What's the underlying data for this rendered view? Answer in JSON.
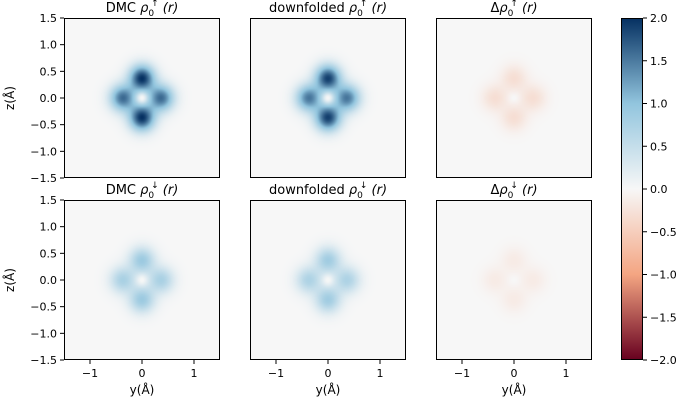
{
  "chart_data": {
    "type": "heatmap",
    "colormap": "RdBu",
    "colors": {
      "neg_max": "#67001f",
      "neg_mid": "#f4a582",
      "zero": "#f7f7f7",
      "pos_mid": "#92c5de",
      "pos_max": "#053061"
    },
    "xlabel": "y(Å)",
    "ylabel": "z(Å)",
    "xlim": [
      -1.5,
      1.5
    ],
    "ylim": [
      -1.5,
      1.5
    ],
    "xticks": [
      "−1",
      "0",
      "1"
    ],
    "xtick_values": [
      -1,
      0,
      1
    ],
    "yticks": [
      "1.5",
      "1.0",
      "0.5",
      "0.0",
      "−0.5",
      "−1.0",
      "−1.5"
    ],
    "ytick_values": [
      1.5,
      1.0,
      0.5,
      0.0,
      -0.5,
      -1.0,
      -1.5
    ],
    "colorbar": {
      "vmin": -2.0,
      "vmax": 2.0,
      "ticks": [
        "2.0",
        "1.5",
        "1.0",
        "0.5",
        "0.0",
        "−0.5",
        "−1.0",
        "−1.5",
        "−2.0"
      ],
      "tick_values": [
        2.0,
        1.5,
        1.0,
        0.5,
        0.0,
        -0.5,
        -1.0,
        -1.5,
        -2.0
      ]
    },
    "panels": [
      {
        "row": 0,
        "col": 0,
        "title_pre": "DMC ",
        "spin": "↑",
        "peak_value": 2.0,
        "lobe_ratio_horizontal": 0.8
      },
      {
        "row": 0,
        "col": 1,
        "title_pre": "downfolded ",
        "spin": "↑",
        "peak_value": 1.9,
        "lobe_ratio_horizontal": 0.8
      },
      {
        "row": 0,
        "col": 2,
        "title_pre": "Δ",
        "spin": "↑",
        "peak_value": -0.3,
        "lobe_ratio_horizontal": 1.0
      },
      {
        "row": 1,
        "col": 0,
        "title_pre": "DMC ",
        "spin": "↓",
        "peak_value": 0.9,
        "lobe_ratio_horizontal": 0.85
      },
      {
        "row": 1,
        "col": 1,
        "title_pre": "downfolded ",
        "spin": "↓",
        "peak_value": 0.85,
        "lobe_ratio_horizontal": 0.85
      },
      {
        "row": 1,
        "col": 2,
        "title_pre": "Δ",
        "spin": "↓",
        "peak_value": -0.15,
        "lobe_ratio_horizontal": 1.0
      }
    ]
  }
}
